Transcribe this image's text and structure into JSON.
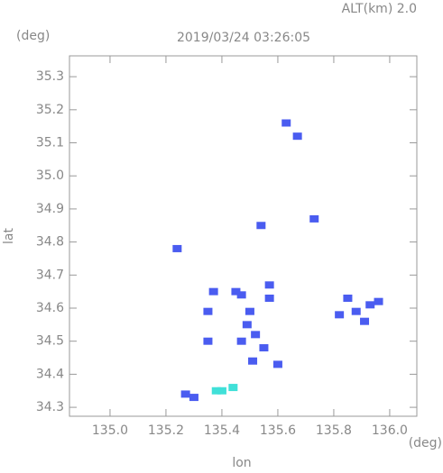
{
  "chart_data": {
    "type": "scatter",
    "title": "2019/03/24 03:26:05",
    "subtitle": "ALT(km) 2.0",
    "y_unit": "(deg)",
    "x_unit": "(deg)",
    "xlabel": "lon",
    "ylabel": "lat",
    "xlim": [
      134.855,
      136.097
    ],
    "ylim": [
      34.273,
      35.363
    ],
    "xticks": [
      {
        "value": 135,
        "label": "135.0"
      },
      135.2,
      135.4,
      135.6,
      135.8,
      {
        "value": 136,
        "label": "136.0"
      }
    ],
    "yticks": [
      34.3,
      34.4,
      34.5,
      34.6,
      34.7,
      34.8,
      34.9,
      {
        "value": 35,
        "label": "35.0"
      },
      35.1,
      35.2,
      35.3
    ],
    "series": [
      {
        "color": "#4a5cf0",
        "x": [
          135.63,
          135.67,
          135.73,
          135.54,
          135.24,
          135.37,
          135.45,
          135.47,
          135.35,
          135.5,
          135.57,
          135.57,
          135.49,
          135.52,
          135.47,
          135.55,
          135.35,
          135.51,
          135.6,
          135.85,
          135.88,
          135.82,
          135.93,
          135.96,
          135.91,
          135.27,
          135.3
        ],
        "values": [
          35.16,
          35.12,
          34.87,
          34.85,
          34.78,
          34.65,
          34.65,
          34.64,
          34.59,
          34.59,
          34.63,
          34.67,
          34.55,
          34.52,
          34.5,
          34.48,
          34.5,
          34.44,
          34.43,
          34.63,
          34.59,
          34.58,
          34.61,
          34.62,
          34.56,
          34.34,
          34.33
        ]
      },
      {
        "color": "#40e0d8",
        "x": [
          135.38,
          135.44,
          135.4
        ],
        "values": [
          34.35,
          34.36,
          34.35
        ]
      }
    ]
  }
}
